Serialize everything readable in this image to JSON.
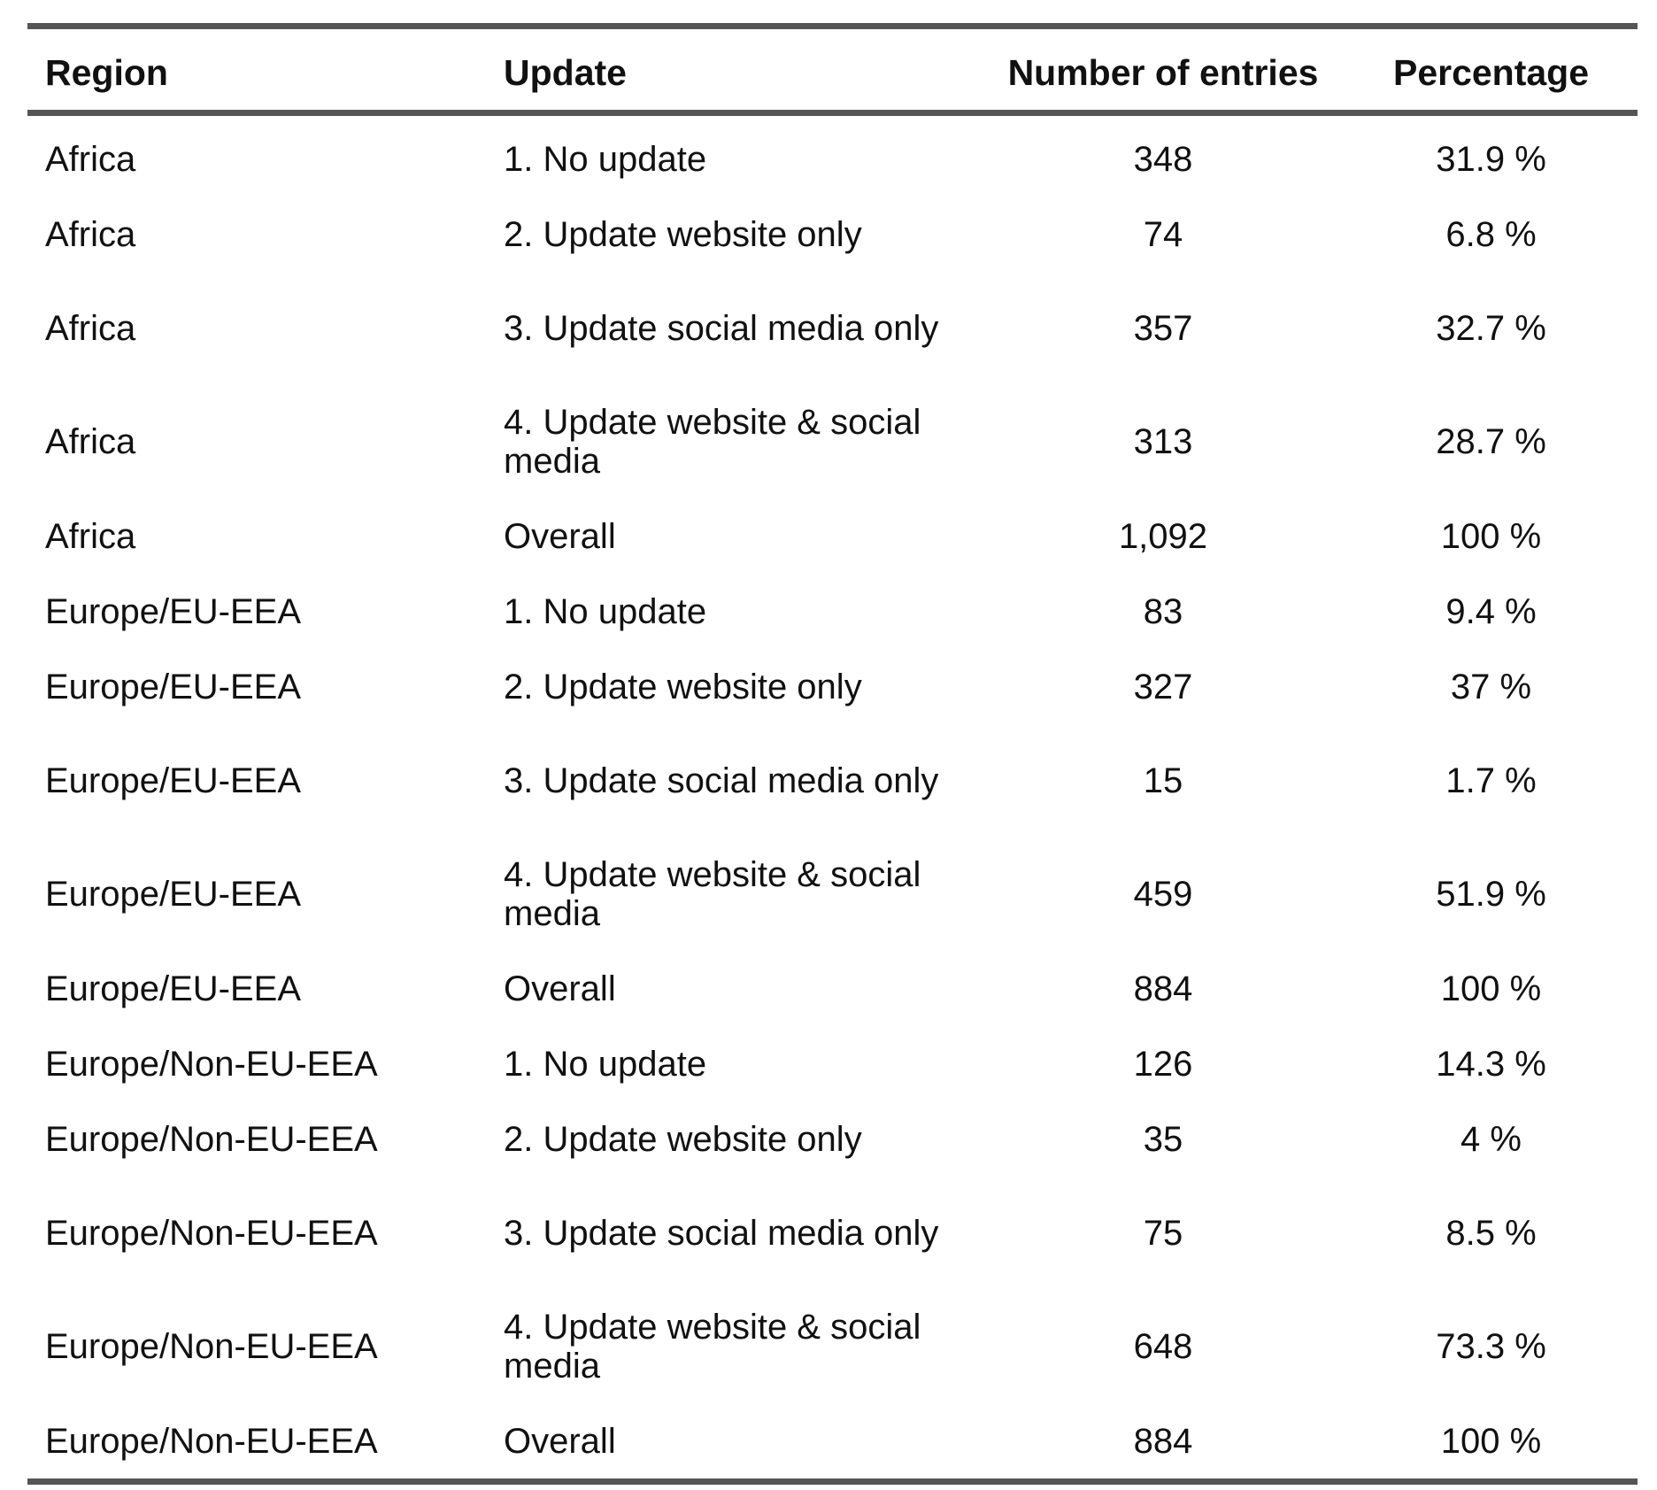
{
  "table": {
    "headers": {
      "region": "Region",
      "update": "Update",
      "entries": "Number of entries",
      "percentage": "Percentage"
    },
    "rows": [
      {
        "region": "Africa",
        "update": "1. No update",
        "entries": "348",
        "percentage": "31.9 %"
      },
      {
        "region": "Africa",
        "update": "2. Update website only",
        "entries": "74",
        "percentage": "6.8 %"
      },
      {
        "region": "Africa",
        "update": "3. Update social media only",
        "entries": "357",
        "percentage": "32.7 %"
      },
      {
        "region": "Africa",
        "update": "4. Update website & social media",
        "entries": "313",
        "percentage": "28.7 %"
      },
      {
        "region": "Africa",
        "update": "Overall",
        "entries": "1,092",
        "percentage": "100 %"
      },
      {
        "region": "Europe/EU-EEA",
        "update": "1. No update",
        "entries": "83",
        "percentage": "9.4 %"
      },
      {
        "region": "Europe/EU-EEA",
        "update": "2. Update website only",
        "entries": "327",
        "percentage": "37 %"
      },
      {
        "region": "Europe/EU-EEA",
        "update": "3. Update social media only",
        "entries": "15",
        "percentage": "1.7 %"
      },
      {
        "region": "Europe/EU-EEA",
        "update": "4. Update website & social media",
        "entries": "459",
        "percentage": "51.9 %"
      },
      {
        "region": "Europe/EU-EEA",
        "update": "Overall",
        "entries": "884",
        "percentage": "100 %"
      },
      {
        "region": "Europe/Non-EU-EEA",
        "update": "1. No update",
        "entries": "126",
        "percentage": "14.3 %"
      },
      {
        "region": "Europe/Non-EU-EEA",
        "update": "2. Update website only",
        "entries": "35",
        "percentage": "4 %"
      },
      {
        "region": "Europe/Non-EU-EEA",
        "update": "3. Update social media only",
        "entries": "75",
        "percentage": "8.5 %"
      },
      {
        "region": "Europe/Non-EU-EEA",
        "update": "4. Update website & social media",
        "entries": "648",
        "percentage": "73.3 %"
      },
      {
        "region": "Europe/Non-EU-EEA",
        "update": "Overall",
        "entries": "884",
        "percentage": "100 %"
      }
    ]
  }
}
